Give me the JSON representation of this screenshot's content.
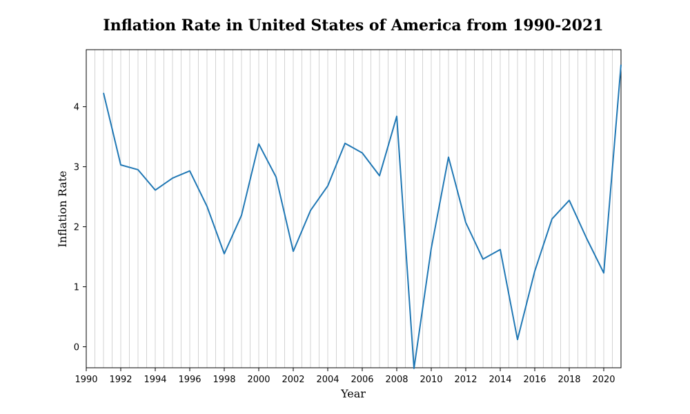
{
  "chart_data": {
    "type": "line",
    "title": "Inflation Rate in United States of America from 1990-2021",
    "xlabel": "Year",
    "ylabel": "Inflation Rate",
    "xlim": [
      1990,
      2021
    ],
    "ylim": [
      -0.35,
      4.95
    ],
    "x_ticks": [
      1990,
      1992,
      1994,
      1996,
      1998,
      2000,
      2002,
      2004,
      2006,
      2008,
      2010,
      2012,
      2014,
      2016,
      2018,
      2020
    ],
    "y_ticks": [
      0,
      1,
      2,
      3,
      4
    ],
    "grid": "vertical minor lines at every 0.5 year",
    "line_color": "#1f77b4",
    "series": [
      {
        "x": [
          1991,
          1992,
          1993,
          1994,
          1995,
          1996,
          1997,
          1998,
          1999,
          2000,
          2001,
          2002,
          2003,
          2004,
          2005,
          2006,
          2007,
          2008,
          2009,
          2010,
          2011,
          2012,
          2013,
          2014,
          2015,
          2016,
          2017,
          2018,
          2019,
          2020,
          2021
        ],
        "values": [
          4.23,
          3.03,
          2.95,
          2.61,
          2.81,
          2.93,
          2.34,
          1.55,
          2.19,
          3.38,
          2.83,
          1.59,
          2.27,
          2.68,
          3.39,
          3.23,
          2.85,
          3.84,
          -0.36,
          1.64,
          3.16,
          2.07,
          1.46,
          1.62,
          0.12,
          1.26,
          2.13,
          2.44,
          1.81,
          1.23,
          4.7
        ]
      }
    ]
  }
}
